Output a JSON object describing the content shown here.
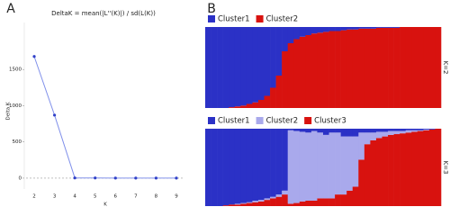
{
  "chart_data": [
    {
      "type": "line",
      "panel_label": "A",
      "title": "DeltaK = mean(|L''(K)|) / sd(L(K))",
      "x_label": "K",
      "y_label": "Delta K",
      "x": [
        2,
        3,
        4,
        5,
        6,
        7,
        8,
        9
      ],
      "values": [
        1680,
        870,
        3,
        2,
        1,
        1,
        1,
        1
      ],
      "color": "#3040c8",
      "line_color": "#8090ea",
      "xlim": [
        1.6,
        9.4
      ],
      "xticks": [
        2,
        3,
        4,
        5,
        6,
        7,
        8,
        9
      ],
      "ylim": [
        -150,
        2000
      ],
      "yticks": [
        0,
        500,
        1000,
        1500
      ],
      "refline": 0
    },
    {
      "type": "stacked-bar",
      "panel_label": "B",
      "side_label": "K=2",
      "series": [
        {
          "name": "Cluster1",
          "color": "#2b31c6",
          "values": [
            1,
            1,
            1,
            1,
            0.99,
            0.98,
            0.97,
            0.95,
            0.93,
            0.9,
            0.85,
            0.75,
            0.6,
            0.3,
            0.2,
            0.15,
            0.12,
            0.1,
            0.08,
            0.07,
            0.06,
            0.05,
            0.05,
            0.04,
            0.03,
            0.03,
            0.02,
            0.02,
            0.02,
            0.01,
            0.01,
            0.01,
            0.01,
            0,
            0,
            0,
            0,
            0,
            0,
            0
          ]
        },
        {
          "name": "Cluster2",
          "color": "#d8120f",
          "values": [
            0,
            0,
            0,
            0,
            0.01,
            0.02,
            0.03,
            0.05,
            0.07,
            0.1,
            0.15,
            0.25,
            0.4,
            0.7,
            0.8,
            0.85,
            0.88,
            0.9,
            0.92,
            0.93,
            0.94,
            0.95,
            0.95,
            0.96,
            0.97,
            0.97,
            0.98,
            0.98,
            0.98,
            0.99,
            0.99,
            0.99,
            0.99,
            1,
            1,
            1,
            1,
            1,
            1,
            1
          ]
        }
      ],
      "ylim": [
        0,
        1
      ]
    },
    {
      "type": "stacked-bar",
      "side_label": "K=3",
      "series": [
        {
          "name": "Cluster1",
          "color": "#2b31c6",
          "values": [
            1,
            1,
            1,
            0.99,
            0.98,
            0.97,
            0.96,
            0.95,
            0.93,
            0.92,
            0.9,
            0.88,
            0.85,
            0.8,
            0.02,
            0.03,
            0.04,
            0.05,
            0.03,
            0.05,
            0.08,
            0.05,
            0.05,
            0.1,
            0.1,
            0.1,
            0.05,
            0.05,
            0.05,
            0.04,
            0.04,
            0.03,
            0.03,
            0.03,
            0.02,
            0.02,
            0.02,
            0.01,
            0.01,
            0
          ]
        },
        {
          "name": "Cluster2",
          "color": "#a9a9ec",
          "values": [
            0,
            0,
            0,
            0,
            0,
            0.01,
            0.01,
            0.01,
            0.02,
            0.02,
            0.02,
            0.02,
            0.03,
            0.05,
            0.95,
            0.93,
            0.9,
            0.88,
            0.9,
            0.85,
            0.82,
            0.85,
            0.8,
            0.75,
            0.7,
            0.65,
            0.35,
            0.15,
            0.1,
            0.08,
            0.06,
            0.05,
            0.04,
            0.03,
            0.03,
            0.02,
            0.01,
            0.01,
            0,
            0
          ]
        },
        {
          "name": "Cluster3",
          "color": "#d8120f",
          "values": [
            0,
            0,
            0,
            0.01,
            0.02,
            0.02,
            0.03,
            0.04,
            0.05,
            0.06,
            0.08,
            0.1,
            0.12,
            0.15,
            0.03,
            0.04,
            0.06,
            0.07,
            0.07,
            0.1,
            0.1,
            0.1,
            0.15,
            0.15,
            0.2,
            0.25,
            0.6,
            0.8,
            0.85,
            0.88,
            0.9,
            0.92,
            0.93,
            0.94,
            0.95,
            0.96,
            0.97,
            0.98,
            0.99,
            1
          ]
        }
      ],
      "ylim": [
        0,
        1
      ]
    }
  ]
}
